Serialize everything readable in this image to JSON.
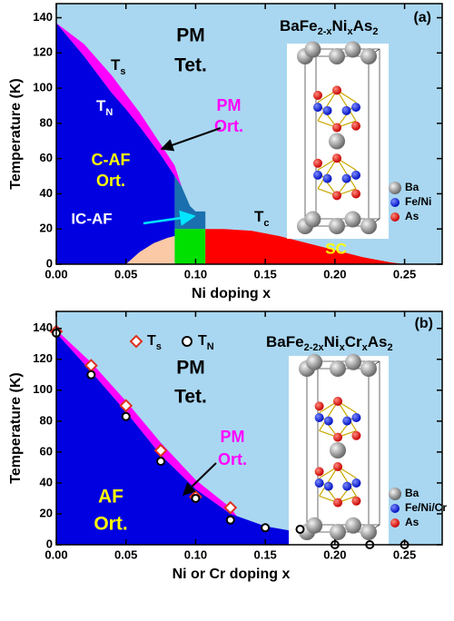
{
  "chart_data": [
    {
      "type": "phase",
      "panel_label": "(a)",
      "compound": [
        {
          "text": "BaFe"
        },
        {
          "text": "2-x",
          "sub": true
        },
        {
          "text": "Ni"
        },
        {
          "text": "x",
          "sub": true
        },
        {
          "text": "As"
        },
        {
          "text": "2",
          "sub": true
        }
      ],
      "xlabel": "Ni doping x",
      "ylabel": "Temperature (K)",
      "xlim": [
        0,
        0.277
      ],
      "ylim": [
        0,
        148
      ],
      "xticks": [
        {
          "value": 0,
          "label": "0.00"
        },
        {
          "value": 0.05,
          "label": "0.05"
        },
        {
          "value": 0.1,
          "label": "0.10"
        },
        {
          "value": 0.15,
          "label": "0.15"
        },
        {
          "value": 0.2,
          "label": "0.20"
        },
        {
          "value": 0.25,
          "label": "0.25"
        }
      ],
      "yticks": [
        0,
        20,
        40,
        60,
        80,
        100,
        120,
        140
      ],
      "background": "#a9d7f1",
      "annotations": [
        "PM",
        "Tet.",
        "PM",
        "Ort.",
        "C-AF",
        "Ort.",
        "IC-AF",
        "SC"
      ],
      "curve_labels": [
        {
          "text": "T",
          "sub": "s"
        },
        {
          "text": "T",
          "sub": "N"
        },
        {
          "text": "T",
          "sub": "c"
        }
      ],
      "inset_labels": [
        "Ba",
        "Fe/Ni",
        "As"
      ],
      "regions": [
        {
          "color": "#ff00ff",
          "x": [
            0,
            0.02,
            0.04,
            0.06,
            0.075,
            0.085,
            0.09
          ],
          "upper": [
            137,
            125,
            107,
            86,
            68,
            56,
            44
          ],
          "lower": [
            137,
            118,
            97,
            78,
            62,
            50,
            44
          ]
        },
        {
          "color": "#0000e0",
          "x": [
            0,
            0.02,
            0.04,
            0.05,
            0.06,
            0.075,
            0.085
          ],
          "upper": [
            137,
            118,
            97,
            88,
            78,
            62,
            50
          ],
          "lower": [
            0,
            0,
            0,
            0,
            7,
            13,
            16
          ]
        },
        {
          "color": "#1a6fae",
          "x": [
            0.085,
            0.09,
            0.096,
            0.1,
            0.107
          ],
          "upper": [
            50,
            44,
            33,
            30,
            30
          ],
          "lower": [
            20,
            20,
            20,
            20,
            20
          ]
        },
        {
          "color": "#fbc9a6",
          "x": [
            0.05,
            0.06,
            0.07,
            0.08,
            0.085
          ],
          "upper": [
            0,
            7,
            12,
            15,
            16
          ],
          "lower": [
            0,
            0,
            0,
            0,
            0
          ]
        },
        {
          "color": "#00e000",
          "x": [
            0.085,
            0.107
          ],
          "upper": [
            20,
            20
          ],
          "lower": [
            0,
            0
          ]
        },
        {
          "color": "#ff0000",
          "x": [
            0.107,
            0.12,
            0.14,
            0.16,
            0.18,
            0.2,
            0.22,
            0.24,
            0.25
          ],
          "upper": [
            20,
            20,
            19,
            16,
            12,
            8,
            4,
            1,
            0
          ],
          "lower": [
            0,
            0,
            0,
            0,
            0,
            0,
            0,
            0,
            0
          ]
        }
      ]
    },
    {
      "type": "phase",
      "panel_label": "(b)",
      "compound": [
        {
          "text": "BaFe"
        },
        {
          "text": "2-2x",
          "sub": true
        },
        {
          "text": "Ni"
        },
        {
          "text": "x",
          "sub": true
        },
        {
          "text": "Cr"
        },
        {
          "text": "x",
          "sub": true
        },
        {
          "text": "As"
        },
        {
          "text": "2",
          "sub": true
        }
      ],
      "xlabel": "Ni or Cr doping x",
      "ylabel": "Temperature (K)",
      "xlim": [
        0,
        0.277
      ],
      "ylim": [
        0,
        151
      ],
      "xticks": [
        {
          "value": 0,
          "label": "0.00"
        },
        {
          "value": 0.05,
          "label": "0.05"
        },
        {
          "value": 0.1,
          "label": "0.10"
        },
        {
          "value": 0.15,
          "label": "0.15"
        },
        {
          "value": 0.2,
          "label": "0.20"
        },
        {
          "value": 0.25,
          "label": "0.25"
        }
      ],
      "yticks": [
        0,
        20,
        40,
        60,
        80,
        100,
        120,
        140
      ],
      "background": "#a9d7f1",
      "annotations": [
        "PM",
        "Tet.",
        "PM",
        "Ort.",
        "AF",
        "Ort."
      ],
      "inset_labels": [
        "Ba",
        "Fe/Ni/Cr",
        "As"
      ],
      "regions": [
        {
          "color": "#ff00ff",
          "x": [
            0,
            0.025,
            0.05,
            0.075,
            0.1,
            0.125,
            0.13
          ],
          "upper": [
            139,
            118,
            93,
            66,
            42,
            24,
            18
          ],
          "lower": [
            137,
            112,
            86,
            58,
            36,
            20,
            18
          ]
        },
        {
          "color": "#0000e0",
          "x": [
            0,
            0.025,
            0.05,
            0.075,
            0.1,
            0.125,
            0.15,
            0.175,
            0.19,
            0.2
          ],
          "upper": [
            137,
            112,
            86,
            58,
            36,
            20,
            12,
            8,
            4,
            0
          ],
          "lower": [
            0,
            0,
            0,
            0,
            0,
            0,
            0,
            0,
            0,
            0
          ]
        }
      ],
      "series": [
        {
          "name": "T",
          "name_sub": "s",
          "marker": "diamond",
          "color": "#e0301e",
          "x": [
            0,
            0.025,
            0.05,
            0.075,
            0.1,
            0.125
          ],
          "values": [
            138,
            116,
            90,
            61,
            31,
            24
          ]
        },
        {
          "name": "T",
          "name_sub": "N",
          "marker": "circle",
          "color": "#000000",
          "x": [
            0,
            0.025,
            0.05,
            0.075,
            0.1,
            0.125,
            0.15,
            0.175,
            0.2,
            0.225,
            0.25
          ],
          "values": [
            137,
            110,
            83,
            54,
            30,
            16,
            11,
            10,
            0,
            0,
            0
          ]
        }
      ]
    }
  ]
}
